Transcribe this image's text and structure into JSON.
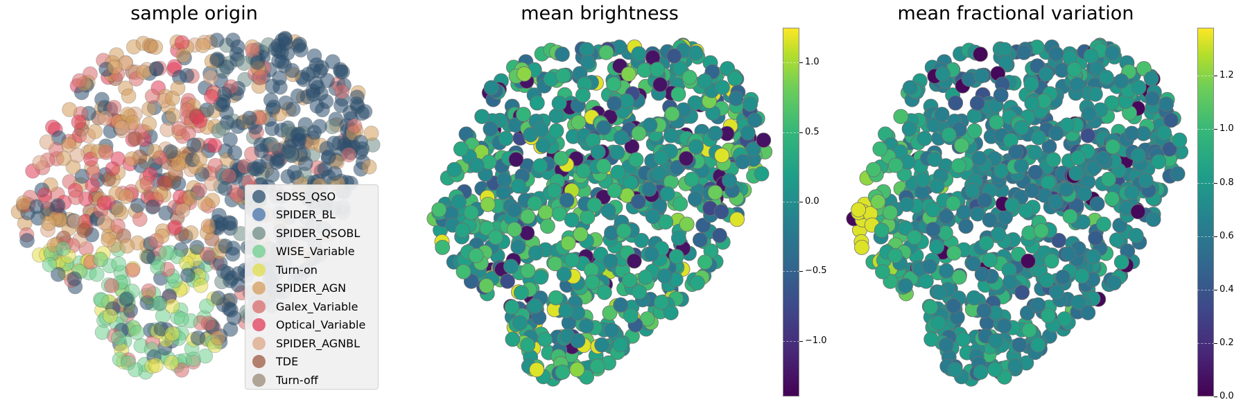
{
  "chart_data": [
    {
      "type": "scatter",
      "title": "sample origin",
      "legend": {
        "placement": "lower-right",
        "entries": [
          {
            "label": "SDSS_QSO",
            "color": "#2b4f6e"
          },
          {
            "label": "SPIDER_BL",
            "color": "#4673ab"
          },
          {
            "label": "SPIDER_QSOBL",
            "color": "#6f8c86"
          },
          {
            "label": "WISE_Variable",
            "color": "#6fcf8e"
          },
          {
            "label": "Turn-on",
            "color": "#e2de4c"
          },
          {
            "label": "SPIDER_AGN",
            "color": "#d49c5c"
          },
          {
            "label": "Galex_Variable",
            "color": "#d96b6b"
          },
          {
            "label": "Optical_Variable",
            "color": "#e03c58"
          },
          {
            "label": "SPIDER_AGNBL",
            "color": "#dca585"
          },
          {
            "label": "TDE",
            "color": "#9c5a40"
          },
          {
            "label": "Turn-off",
            "color": "#9a8a78"
          }
        ]
      },
      "grid": false,
      "axes_visible": false
    },
    {
      "type": "scatter",
      "title": "mean brightness",
      "colormap": "viridis",
      "colorbar": {
        "range": [
          -1.4,
          1.25
        ],
        "ticks": [
          "1.0",
          "0.5",
          "0.0",
          "−0.5",
          "−1.0"
        ],
        "tick_values": [
          1.0,
          0.5,
          0.0,
          -0.5,
          -1.0
        ]
      },
      "grid": false,
      "axes_visible": false
    },
    {
      "type": "scatter",
      "title": "mean fractional variation",
      "colormap": "viridis",
      "colorbar": {
        "range": [
          0.0,
          1.38
        ],
        "ticks": [
          "1.2",
          "1.0",
          "0.8",
          "0.6",
          "0.4",
          "0.2",
          "0.0"
        ],
        "tick_values": [
          1.2,
          1.0,
          0.8,
          0.6,
          0.4,
          0.2,
          0.0
        ]
      },
      "grid": false,
      "axes_visible": false
    }
  ]
}
